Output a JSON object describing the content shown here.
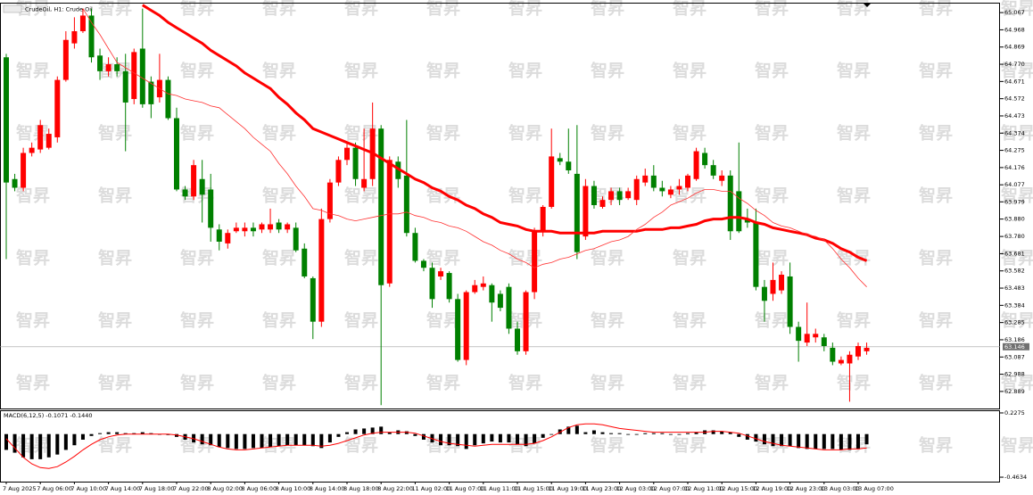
{
  "watermark": "智昇",
  "chart_data": [
    {
      "type": "candlestick",
      "title": "CrudeOil, H1:  Crude Oil",
      "up_color": "#ff0000",
      "down_color": "#008000",
      "ylim": [
        62.791,
        65.124
      ],
      "yticks": [
        65.067,
        64.968,
        64.869,
        {
          "value": 64.77,
          "label": "64.770"
        },
        64.671,
        64.572,
        64.473,
        64.374,
        64.275,
        64.176,
        64.077,
        63.979,
        {
          "value": 63.88,
          "label": "63.880"
        },
        {
          "value": 63.78,
          "label": "63.780"
        },
        63.681,
        63.582,
        63.483,
        63.384,
        63.285,
        63.186,
        63.087,
        62.988,
        62.889
      ],
      "last_price": 63.146,
      "categories": [
        "7 Aug 2025",
        null,
        null,
        null,
        "7 Aug 06:00",
        null,
        null,
        null,
        "7 Aug 10:00",
        null,
        null,
        null,
        "7 Aug 14:00",
        null,
        null,
        null,
        "7 Aug 18:00",
        null,
        null,
        null,
        "7 Aug 22:00",
        null,
        null,
        null,
        "8 Aug 02:00",
        null,
        null,
        null,
        "8 Aug 06:00",
        null,
        null,
        null,
        "8 Aug 10:00",
        null,
        null,
        null,
        "8 Aug 14:00",
        null,
        null,
        null,
        "8 Aug 18:00",
        null,
        null,
        null,
        "8 Aug 22:00",
        null,
        null,
        null,
        "11 Aug 02:00",
        null,
        null,
        null,
        "11 Aug 07:00",
        null,
        null,
        null,
        "11 Aug 11:00",
        null,
        null,
        null,
        "11 Aug 15:00",
        null,
        null,
        null,
        "11 Aug 19:00",
        null,
        null,
        null,
        "11 Aug 23:00",
        null,
        null,
        null,
        "12 Aug 03:00",
        null,
        null,
        null,
        "12 Aug 07:00",
        null,
        null,
        null,
        "12 Aug 11:00",
        null,
        null,
        null,
        "12 Aug 15:00",
        null,
        null,
        null,
        "12 Aug 19:00",
        null,
        null,
        null,
        "12 Aug 23:00",
        null,
        null,
        null,
        "13 Aug 03:00",
        null,
        null,
        null,
        "13 Aug 07:00",
        null
      ],
      "candles": [
        [
          64.81,
          64.83,
          63.65,
          64.09
        ],
        [
          64.11,
          64.14,
          64.04,
          64.06
        ],
        [
          64.06,
          64.29,
          64.04,
          64.26
        ],
        [
          64.26,
          64.32,
          64.24,
          64.29
        ],
        [
          64.28,
          64.45,
          64.26,
          64.42
        ],
        [
          64.29,
          64.4,
          64.28,
          64.37
        ],
        [
          64.35,
          64.7,
          64.32,
          64.68
        ],
        [
          64.68,
          64.96,
          64.67,
          64.91
        ],
        [
          64.89,
          65.04,
          64.86,
          64.96
        ],
        [
          64.96,
          65.09,
          64.95,
          65.05
        ],
        [
          65.05,
          65.09,
          64.78,
          64.81
        ],
        [
          64.82,
          64.86,
          64.68,
          64.73
        ],
        [
          64.73,
          64.81,
          64.7,
          64.77
        ],
        [
          64.77,
          64.81,
          64.7,
          64.73
        ],
        [
          64.73,
          64.83,
          64.27,
          64.55
        ],
        [
          64.57,
          64.86,
          64.54,
          64.84
        ],
        [
          64.86,
          65.09,
          64.52,
          64.54
        ],
        [
          64.67,
          64.7,
          64.46,
          64.54
        ],
        [
          64.58,
          64.83,
          64.55,
          64.68
        ],
        [
          64.68,
          64.7,
          64.45,
          64.46
        ],
        [
          64.46,
          64.52,
          64.04,
          64.05
        ],
        [
          64.05,
          64.07,
          63.99,
          64.01
        ],
        [
          64.01,
          64.22,
          63.99,
          64.19
        ],
        [
          64.11,
          64.22,
          63.86,
          64.02
        ],
        [
          64.05,
          64.14,
          63.75,
          63.83
        ],
        [
          63.82,
          63.85,
          63.7,
          63.75
        ],
        [
          63.74,
          63.82,
          63.71,
          63.8
        ],
        [
          63.81,
          63.86,
          63.8,
          63.83
        ],
        [
          63.81,
          63.86,
          63.78,
          63.83
        ],
        [
          63.83,
          63.86,
          63.78,
          63.81
        ],
        [
          63.82,
          63.86,
          63.8,
          63.85
        ],
        [
          63.82,
          63.94,
          63.8,
          63.85
        ],
        [
          63.86,
          63.88,
          63.8,
          63.82
        ],
        [
          63.82,
          63.86,
          63.8,
          63.85
        ],
        [
          63.83,
          63.86,
          63.69,
          63.7
        ],
        [
          63.71,
          63.74,
          63.54,
          63.55
        ],
        [
          63.54,
          63.55,
          63.19,
          63.29
        ],
        [
          63.29,
          63.94,
          63.26,
          63.88
        ],
        [
          63.88,
          64.11,
          63.86,
          64.09
        ],
        [
          64.09,
          64.24,
          64.07,
          64.22
        ],
        [
          64.22,
          64.32,
          64.19,
          64.29
        ],
        [
          64.29,
          64.32,
          64.07,
          64.11
        ],
        [
          64.06,
          64.4,
          64.04,
          64.11
        ],
        [
          64.11,
          64.55,
          64.07,
          64.4
        ],
        [
          64.4,
          64.42,
          62.81,
          63.5
        ],
        [
          63.51,
          64.24,
          63.49,
          64.22
        ],
        [
          64.21,
          64.24,
          64.06,
          64.11
        ],
        [
          64.13,
          64.45,
          63.78,
          63.8
        ],
        [
          63.8,
          63.83,
          63.63,
          63.64
        ],
        [
          63.64,
          63.65,
          63.58,
          63.6
        ],
        [
          63.6,
          63.63,
          63.37,
          63.42
        ],
        [
          63.55,
          63.6,
          63.53,
          63.58
        ],
        [
          63.57,
          63.58,
          63.4,
          63.42
        ],
        [
          63.42,
          63.45,
          63.06,
          63.07
        ],
        [
          63.07,
          63.47,
          63.04,
          63.46
        ],
        [
          63.46,
          63.53,
          63.45,
          63.5
        ],
        [
          63.49,
          63.55,
          63.47,
          63.51
        ],
        [
          63.5,
          63.51,
          63.29,
          63.4
        ],
        [
          63.45,
          63.47,
          63.35,
          63.37
        ],
        [
          63.49,
          63.51,
          63.22,
          63.25
        ],
        [
          63.25,
          63.29,
          63.1,
          63.12
        ],
        [
          63.12,
          63.47,
          63.1,
          63.46
        ],
        [
          63.46,
          63.83,
          63.42,
          63.81
        ],
        [
          63.81,
          63.96,
          63.78,
          63.95
        ],
        [
          63.95,
          64.4,
          63.94,
          64.24
        ],
        [
          64.23,
          64.26,
          64.19,
          64.21
        ],
        [
          64.21,
          64.4,
          64.14,
          64.16
        ],
        [
          64.14,
          64.42,
          63.65,
          63.69
        ],
        [
          63.78,
          64.11,
          63.76,
          64.07
        ],
        [
          64.07,
          64.1,
          63.94,
          63.96
        ],
        [
          63.95,
          64.01,
          63.94,
          63.99
        ],
        [
          63.99,
          64.06,
          63.96,
          64.04
        ],
        [
          64.04,
          64.06,
          63.96,
          63.99
        ],
        [
          64.0,
          64.06,
          63.99,
          64.04
        ],
        [
          63.99,
          64.13,
          63.96,
          64.11
        ],
        [
          64.09,
          64.17,
          64.07,
          64.13
        ],
        [
          64.13,
          64.19,
          64.04,
          64.06
        ],
        [
          64.06,
          64.1,
          64.01,
          64.04
        ],
        [
          64.02,
          64.07,
          64.0,
          64.05
        ],
        [
          64.05,
          64.11,
          64.02,
          64.07
        ],
        [
          64.06,
          64.14,
          64.04,
          64.13
        ],
        [
          64.11,
          64.29,
          64.1,
          64.27
        ],
        [
          64.26,
          64.29,
          64.17,
          64.19
        ],
        [
          64.19,
          64.22,
          64.11,
          64.13
        ],
        [
          64.1,
          64.16,
          64.07,
          64.13
        ],
        [
          64.13,
          64.16,
          63.76,
          63.81
        ],
        [
          64.04,
          64.32,
          63.8,
          63.81
        ],
        [
          63.88,
          63.94,
          63.83,
          63.86
        ],
        [
          63.86,
          63.94,
          63.47,
          63.49
        ],
        [
          63.49,
          63.53,
          63.29,
          63.41
        ],
        [
          63.45,
          63.63,
          63.41,
          63.53
        ],
        [
          63.47,
          63.58,
          63.45,
          63.56
        ],
        [
          63.55,
          63.63,
          63.22,
          63.26
        ],
        [
          63.26,
          63.29,
          63.06,
          63.18
        ],
        [
          63.17,
          63.4,
          63.15,
          63.22
        ],
        [
          63.2,
          63.25,
          63.17,
          63.22
        ],
        [
          63.2,
          63.22,
          63.12,
          63.15
        ],
        [
          63.14,
          63.17,
          63.04,
          63.06
        ],
        [
          63.05,
          63.09,
          63.04,
          63.07
        ],
        [
          63.05,
          63.12,
          62.83,
          63.1
        ],
        [
          63.09,
          63.17,
          63.07,
          63.15
        ],
        [
          63.12,
          63.17,
          63.1,
          63.14
        ]
      ],
      "series": [
        {
          "color": "#ff0000",
          "values": [
            null,
            null,
            null,
            null,
            null,
            null,
            null,
            null,
            null,
            null,
            null,
            null,
            null,
            null,
            null,
            null,
            65.11,
            65.08,
            65.05,
            65.01,
            64.98,
            64.95,
            64.92,
            64.89,
            64.85,
            64.82,
            64.79,
            64.76,
            64.72,
            64.69,
            64.66,
            64.63,
            64.58,
            64.54,
            64.49,
            64.45,
            64.4,
            64.38,
            64.36,
            64.34,
            64.32,
            64.3,
            64.28,
            64.26,
            64.23,
            64.2,
            64.17,
            64.14,
            64.11,
            64.09,
            64.06,
            64.04,
            64.01,
            63.99,
            63.96,
            63.94,
            63.91,
            63.89,
            63.86,
            63.85,
            63.84,
            63.82,
            63.81,
            63.81,
            63.81,
            63.8,
            63.8,
            63.8,
            63.8,
            63.8,
            63.81,
            63.81,
            63.81,
            63.81,
            63.81,
            63.82,
            63.82,
            63.82,
            63.83,
            63.83,
            63.84,
            63.85,
            63.87,
            63.88,
            63.88,
            63.89,
            63.89,
            63.88,
            63.86,
            63.85,
            63.83,
            63.82,
            63.81,
            63.8,
            63.79,
            63.77,
            63.76,
            63.74,
            63.71,
            63.69,
            63.66,
            63.64
          ]
        },
        {
          "color": "#ff3030",
          "values": [
            null,
            null,
            null,
            null,
            null,
            null,
            null,
            null,
            null,
            65.09,
            65.01,
            64.94,
            64.86,
            64.78,
            64.75,
            64.72,
            64.69,
            64.66,
            64.63,
            64.6,
            64.59,
            64.57,
            64.56,
            64.55,
            64.53,
            64.52,
            64.48,
            64.44,
            64.4,
            64.35,
            64.31,
            64.27,
            64.2,
            64.14,
            64.07,
            64.01,
            63.94,
            63.93,
            63.91,
            63.9,
            63.88,
            63.87,
            63.88,
            63.89,
            63.9,
            63.91,
            63.91,
            63.92,
            63.9,
            63.89,
            63.87,
            63.86,
            63.84,
            63.83,
            63.81,
            63.78,
            63.75,
            63.73,
            63.7,
            63.68,
            63.65,
            63.63,
            63.6,
            63.62,
            63.63,
            63.65,
            63.66,
            63.68,
            63.7,
            63.71,
            63.73,
            63.75,
            63.76,
            63.78,
            63.82,
            63.85,
            63.89,
            63.92,
            63.96,
            63.98,
            64.0,
            64.03,
            64.05,
            64.05,
            64.04,
            64.04,
            64.0,
            63.97,
            63.93,
            63.9,
            63.86,
            63.84,
            63.83,
            63.81,
            63.79,
            63.78,
            63.76,
            63.71,
            63.65,
            63.6,
            63.54,
            63.49
          ]
        }
      ]
    },
    {
      "type": "macd",
      "title": "MACD(6,12,5) -0.1071 -0.1440",
      "ylim": [
        -0.511,
        0.256
      ],
      "yticks": [
        0.2275,
        -0.4634
      ],
      "series": [
        {
          "color": "#000000",
          "values": [
            -0.17,
            -0.2,
            -0.25,
            -0.27,
            -0.27,
            -0.25,
            -0.22,
            -0.17,
            -0.12,
            -0.06,
            -0.02,
            0.01,
            0.02,
            0.02,
            0.01,
            0.01,
            0.02,
            0.01,
            0,
            -0.01,
            -0.03,
            -0.06,
            -0.09,
            -0.11,
            -0.12,
            -0.14,
            -0.15,
            -0.16,
            -0.16,
            -0.15,
            -0.15,
            -0.14,
            -0.13,
            -0.12,
            -0.12,
            -0.12,
            -0.13,
            -0.15,
            -0.09,
            -0.03,
            0.02,
            0.05,
            0.06,
            0.07,
            0.08,
            0.02,
            0.04,
            0.03,
            -0.02,
            -0.06,
            -0.09,
            -0.12,
            -0.12,
            -0.13,
            -0.16,
            -0.12,
            -0.1,
            -0.08,
            -0.09,
            -0.09,
            -0.11,
            -0.13,
            -0.1,
            -0.04,
            0,
            0.05,
            0.08,
            0.09,
            0.02,
            0.04,
            0.02,
            0.01,
            0.01,
            0,
            0,
            0.01,
            0.01,
            0.01,
            0,
            0,
            0.01,
            0.02,
            0.04,
            0.04,
            0.03,
            0.02,
            -0.03,
            -0.06,
            -0.08,
            -0.11,
            -0.13,
            -0.13,
            -0.13,
            -0.15,
            -0.16,
            -0.16,
            -0.16,
            -0.16,
            -0.17,
            -0.17,
            -0.16,
            -0.11
          ]
        },
        {
          "color": "#ff0000",
          "values": [
            -0.05,
            -0.15,
            -0.25,
            -0.32,
            -0.36,
            -0.37,
            -0.35,
            -0.3,
            -0.24,
            -0.17,
            -0.11,
            -0.06,
            -0.03,
            -0.01,
            0,
            0,
            0,
            0,
            0,
            0,
            -0.01,
            -0.03,
            -0.05,
            -0.08,
            -0.11,
            -0.14,
            -0.16,
            -0.17,
            -0.17,
            -0.16,
            -0.15,
            -0.14,
            -0.13,
            -0.12,
            -0.12,
            -0.12,
            -0.12,
            -0.13,
            -0.12,
            -0.1,
            -0.07,
            -0.04,
            -0.01,
            0.01,
            0.02,
            0.02,
            0.02,
            0.02,
            0.01,
            -0.02,
            -0.05,
            -0.08,
            -0.1,
            -0.11,
            -0.12,
            -0.13,
            -0.12,
            -0.11,
            -0.11,
            -0.11,
            -0.11,
            -0.11,
            -0.1,
            -0.07,
            -0.03,
            0.02,
            0.07,
            0.1,
            0.11,
            0.11,
            0.1,
            0.08,
            0.06,
            0.05,
            0.04,
            0.03,
            0.02,
            0.02,
            0.02,
            0.02,
            0.02,
            0.02,
            0.02,
            0.03,
            0.03,
            0.02,
            0.01,
            -0.02,
            -0.05,
            -0.08,
            -0.1,
            -0.12,
            -0.13,
            -0.14,
            -0.15,
            -0.16,
            -0.17,
            -0.17,
            -0.17,
            -0.16,
            -0.16,
            -0.15
          ]
        }
      ]
    }
  ]
}
